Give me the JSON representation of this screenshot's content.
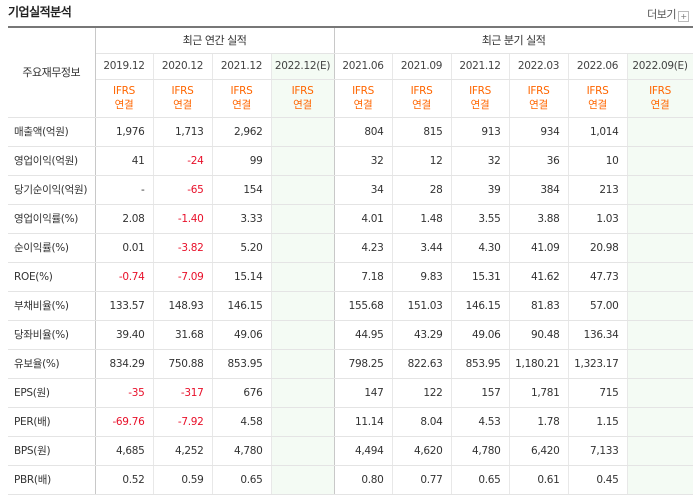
{
  "title": "기업실적분석",
  "more_label": "더보기",
  "row_header_label": "주요재무정보",
  "groups": {
    "annual": "최근 연간 실적",
    "quarterly": "최근 분기 실적"
  },
  "periods": [
    {
      "label": "2019.12",
      "est": false,
      "ifrs": "IFRS",
      "basis": "연결"
    },
    {
      "label": "2020.12",
      "est": false,
      "ifrs": "IFRS",
      "basis": "연결"
    },
    {
      "label": "2021.12",
      "est": false,
      "ifrs": "IFRS",
      "basis": "연결"
    },
    {
      "label": "2022.12(E)",
      "est": true,
      "ifrs": "IFRS",
      "basis": "연결"
    },
    {
      "label": "2021.06",
      "est": false,
      "ifrs": "IFRS",
      "basis": "연결"
    },
    {
      "label": "2021.09",
      "est": false,
      "ifrs": "IFRS",
      "basis": "연결"
    },
    {
      "label": "2021.12",
      "est": false,
      "ifrs": "IFRS",
      "basis": "연결"
    },
    {
      "label": "2022.03",
      "est": false,
      "ifrs": "IFRS",
      "basis": "연결"
    },
    {
      "label": "2022.06",
      "est": false,
      "ifrs": "IFRS",
      "basis": "연결"
    },
    {
      "label": "2022.09(E)",
      "est": true,
      "ifrs": "IFRS",
      "basis": "연결"
    }
  ],
  "rows": [
    {
      "label": "매출액(억원)",
      "group_start": true,
      "values": [
        "1,976",
        "1,713",
        "2,962",
        "",
        "804",
        "815",
        "913",
        "934",
        "1,014",
        ""
      ]
    },
    {
      "label": "영업이익(억원)",
      "values": [
        "41",
        "-24",
        "99",
        "",
        "32",
        "12",
        "32",
        "36",
        "10",
        ""
      ]
    },
    {
      "label": "당기순이익(억원)",
      "values": [
        "-",
        "-65",
        "154",
        "",
        "34",
        "28",
        "39",
        "384",
        "213",
        ""
      ]
    },
    {
      "label": "영업이익률(%)",
      "group_start": true,
      "values": [
        "2.08",
        "-1.40",
        "3.33",
        "",
        "4.01",
        "1.48",
        "3.55",
        "3.88",
        "1.03",
        ""
      ]
    },
    {
      "label": "순이익률(%)",
      "values": [
        "0.01",
        "-3.82",
        "5.20",
        "",
        "4.23",
        "3.44",
        "4.30",
        "41.09",
        "20.98",
        ""
      ]
    },
    {
      "label": "ROE(%)",
      "values": [
        "-0.74",
        "-7.09",
        "15.14",
        "",
        "7.18",
        "9.83",
        "15.31",
        "41.62",
        "47.73",
        ""
      ]
    },
    {
      "label": "부채비율(%)",
      "group_start": true,
      "values": [
        "133.57",
        "148.93",
        "146.15",
        "",
        "155.68",
        "151.03",
        "146.15",
        "81.83",
        "57.00",
        ""
      ]
    },
    {
      "label": "당좌비율(%)",
      "values": [
        "39.40",
        "31.68",
        "49.06",
        "",
        "44.95",
        "43.29",
        "49.06",
        "90.48",
        "136.34",
        ""
      ]
    },
    {
      "label": "유보율(%)",
      "values": [
        "834.29",
        "750.88",
        "853.95",
        "",
        "798.25",
        "822.63",
        "853.95",
        "1,180.21",
        "1,323.17",
        ""
      ]
    },
    {
      "label": "EPS(원)",
      "group_start": true,
      "values": [
        "-35",
        "-317",
        "676",
        "",
        "147",
        "122",
        "157",
        "1,781",
        "715",
        ""
      ]
    },
    {
      "label": "PER(배)",
      "values": [
        "-69.76",
        "-7.92",
        "4.58",
        "",
        "11.14",
        "8.04",
        "4.53",
        "1.78",
        "1.15",
        ""
      ]
    },
    {
      "label": "BPS(원)",
      "values": [
        "4,685",
        "4,252",
        "4,780",
        "",
        "4,494",
        "4,620",
        "4,780",
        "6,420",
        "7,133",
        ""
      ]
    },
    {
      "label": "PBR(배)",
      "values": [
        "0.52",
        "0.59",
        "0.65",
        "",
        "0.80",
        "0.77",
        "0.65",
        "0.61",
        "0.45",
        ""
      ]
    }
  ],
  "colors": {
    "negative": "#e8102a",
    "ifrs": "#ff6600",
    "estimate_bg": "#f4fbf4"
  }
}
